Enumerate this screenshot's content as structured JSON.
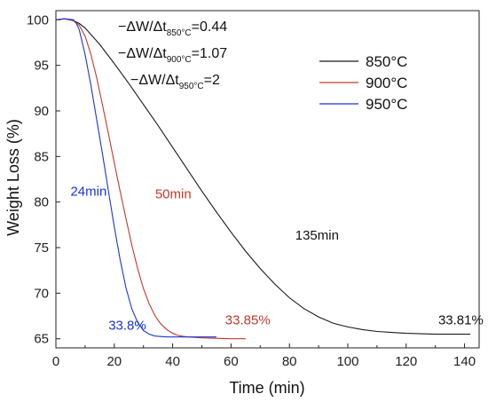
{
  "chart_data": {
    "type": "line",
    "xlabel": "Time (min)",
    "ylabel": "Weight Loss (%)",
    "xlim": [
      0,
      145
    ],
    "ylim": [
      64,
      101
    ],
    "xticks": [
      0,
      20,
      40,
      60,
      80,
      100,
      120,
      140
    ],
    "yticks": [
      65,
      70,
      75,
      80,
      85,
      90,
      95,
      100
    ],
    "grid": false,
    "legend_position": "top-right",
    "series": [
      {
        "name": "850°C",
        "color": "#1a1a1a",
        "x": [
          0,
          3,
          6,
          8,
          10,
          15,
          20,
          25,
          30,
          35,
          40,
          45,
          50,
          55,
          60,
          65,
          70,
          75,
          80,
          85,
          90,
          95,
          100,
          105,
          110,
          115,
          120,
          125,
          130,
          135,
          140,
          142
        ],
        "y": [
          100,
          100.1,
          99.9,
          99.6,
          99.1,
          97.3,
          95.2,
          93.0,
          90.7,
          88.4,
          86.0,
          83.6,
          81.2,
          78.9,
          76.7,
          74.6,
          72.7,
          71.0,
          69.5,
          68.3,
          67.4,
          66.7,
          66.3,
          66.0,
          65.8,
          65.7,
          65.6,
          65.55,
          65.5,
          65.5,
          65.5,
          65.5
        ]
      },
      {
        "name": "900°C",
        "color": "#c0392b",
        "x": [
          0,
          3,
          6,
          8,
          10,
          12,
          14,
          16,
          18,
          20,
          22,
          24,
          26,
          28,
          30,
          32,
          34,
          36,
          38,
          40,
          42,
          45,
          50,
          55,
          60,
          65
        ],
        "y": [
          100,
          100.1,
          99.9,
          99.4,
          98.2,
          96.2,
          93.6,
          90.6,
          87.5,
          84.3,
          81.2,
          78.2,
          75.3,
          72.7,
          70.5,
          68.8,
          67.5,
          66.6,
          66.0,
          65.6,
          65.35,
          65.2,
          65.1,
          65.05,
          65.0,
          65.0
        ]
      },
      {
        "name": "950°C",
        "color": "#1a35d9",
        "x": [
          0,
          3,
          6,
          7,
          8,
          10,
          12,
          14,
          16,
          18,
          20,
          22,
          24,
          26,
          28,
          30,
          32,
          34,
          36,
          38,
          40,
          45,
          50,
          55
        ],
        "y": [
          100,
          100.1,
          100.0,
          99.6,
          98.9,
          96.2,
          92.8,
          89.0,
          85.2,
          81.2,
          77.3,
          73.7,
          70.6,
          68.3,
          66.8,
          65.9,
          65.5,
          65.3,
          65.25,
          65.2,
          65.2,
          65.2,
          65.2,
          65.2
        ]
      }
    ],
    "annotations": [
      {
        "text": "24min",
        "x": 5,
        "y": 80.7,
        "color": "#1a35d9"
      },
      {
        "text": "50min",
        "x": 34,
        "y": 80.4,
        "color": "#c0392b"
      },
      {
        "text": "135min",
        "x": 82,
        "y": 75.9,
        "color": "#111111"
      },
      {
        "text": "33.8%",
        "x": 18,
        "y": 66.0,
        "color": "#1a35d9"
      },
      {
        "text": "33.85%",
        "x": 58,
        "y": 66.6,
        "color": "#c0392b"
      },
      {
        "text": "33.81%",
        "x": 131,
        "y": 66.6,
        "color": "#111111"
      }
    ],
    "equations": [
      {
        "prefix": "−ΔW/Δt",
        "sub": "850°C",
        "value": "=0.44"
      },
      {
        "prefix": "−ΔW/Δt",
        "sub": "900°C",
        "value": "=1.07"
      },
      {
        "prefix": "−ΔW/Δt",
        "sub": "950°C",
        "value": "=2"
      }
    ]
  }
}
